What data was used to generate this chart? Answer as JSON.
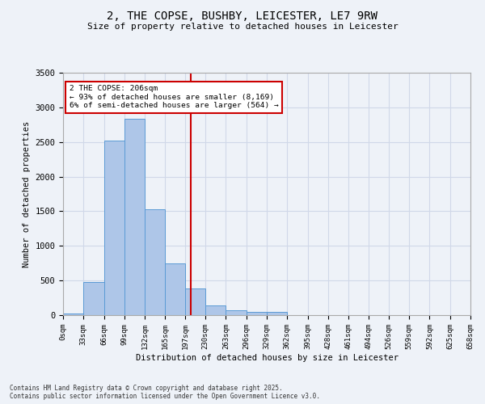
{
  "title_line1": "2, THE COPSE, BUSHBY, LEICESTER, LE7 9RW",
  "title_line2": "Size of property relative to detached houses in Leicester",
  "xlabel": "Distribution of detached houses by size in Leicester",
  "ylabel": "Number of detached properties",
  "footnote": "Contains HM Land Registry data © Crown copyright and database right 2025.\nContains public sector information licensed under the Open Government Licence v3.0.",
  "bar_color": "#aec6e8",
  "bar_edge_color": "#5b9bd5",
  "grid_color": "#d0d8e8",
  "background_color": "#eef2f8",
  "vline_color": "#cc0000",
  "vline_x": 206,
  "annotation_text": "2 THE COPSE: 206sqm\n← 93% of detached houses are smaller (8,169)\n6% of semi-detached houses are larger (564) →",
  "annotation_box_color": "#ffffff",
  "annotation_box_edge": "#cc0000",
  "bin_edges": [
    0,
    33,
    66,
    99,
    132,
    165,
    197,
    230,
    263,
    296,
    329,
    362,
    395,
    428,
    461,
    494,
    526,
    559,
    592,
    625,
    658
  ],
  "bar_heights": [
    20,
    480,
    2520,
    2840,
    1530,
    750,
    390,
    140,
    65,
    45,
    50,
    0,
    0,
    0,
    0,
    0,
    0,
    0,
    0,
    0
  ],
  "ylim": [
    0,
    3500
  ],
  "yticks": [
    0,
    500,
    1000,
    1500,
    2000,
    2500,
    3000,
    3500
  ]
}
